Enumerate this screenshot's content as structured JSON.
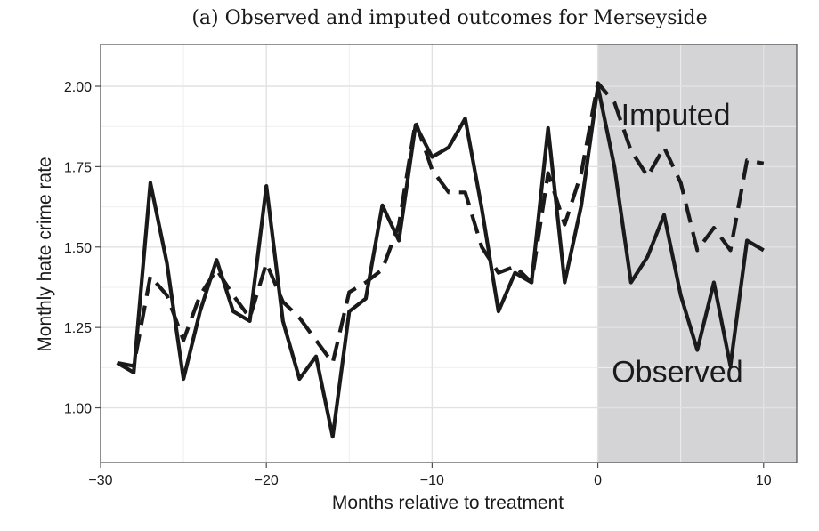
{
  "chart_data": {
    "type": "line",
    "title": "(a) Observed and imputed outcomes for Merseyside",
    "xlabel": "Months relative to treatment",
    "ylabel": "Monthly hate crime rate",
    "xlim": [
      -30,
      12
    ],
    "ylim": [
      0.83,
      2.13
    ],
    "x_ticks": [
      -30,
      -20,
      -10,
      0,
      10
    ],
    "x_tick_labels": [
      "−30",
      "−20",
      "−10",
      "0",
      "10"
    ],
    "y_ticks": [
      1.0,
      1.25,
      1.5,
      1.75,
      2.0
    ],
    "y_tick_labels": [
      "1.00",
      "1.25",
      "1.50",
      "1.75",
      "2.00"
    ],
    "grid": true,
    "shaded_region": {
      "x_start": 0,
      "x_end": 12,
      "color": "#d4d4d6"
    },
    "annotations": [
      {
        "text": "Imputed",
        "x": 4.7,
        "y": 1.88
      },
      {
        "text": "Observed",
        "x": 4.8,
        "y": 1.08
      }
    ],
    "x": [
      -29,
      -28,
      -27,
      -26,
      -25,
      -24,
      -23,
      -22,
      -21,
      -20,
      -19,
      -18,
      -17,
      -16,
      -15,
      -14,
      -13,
      -12,
      -11,
      -10,
      -9,
      -8,
      -7,
      -6,
      -5,
      -4,
      -3,
      -2,
      -1,
      0,
      1,
      2,
      3,
      4,
      5,
      6,
      7,
      8,
      9,
      10
    ],
    "series": [
      {
        "name": "Observed",
        "style": "solid",
        "color": "#1a1a1a",
        "values": [
          1.14,
          1.11,
          1.7,
          1.45,
          1.09,
          1.3,
          1.46,
          1.3,
          1.27,
          1.69,
          1.27,
          1.09,
          1.16,
          0.91,
          1.3,
          1.34,
          1.63,
          1.52,
          1.88,
          1.78,
          1.81,
          1.9,
          1.62,
          1.3,
          1.42,
          1.39,
          1.87,
          1.39,
          1.63,
          2.0,
          1.75,
          1.39,
          1.47,
          1.6,
          1.35,
          1.18,
          1.39,
          1.13,
          1.52,
          1.49
        ]
      },
      {
        "name": "Imputed",
        "style": "dashed",
        "color": "#1a1a1a",
        "values": [
          1.14,
          1.13,
          1.41,
          1.35,
          1.21,
          1.35,
          1.43,
          1.35,
          1.28,
          1.45,
          1.33,
          1.28,
          1.21,
          1.14,
          1.36,
          1.39,
          1.43,
          1.57,
          1.89,
          1.74,
          1.67,
          1.67,
          1.5,
          1.42,
          1.44,
          1.39,
          1.73,
          1.57,
          1.73,
          2.01,
          1.95,
          1.8,
          1.72,
          1.81,
          1.7,
          1.49,
          1.56,
          1.49,
          1.77,
          1.76
        ]
      }
    ]
  }
}
